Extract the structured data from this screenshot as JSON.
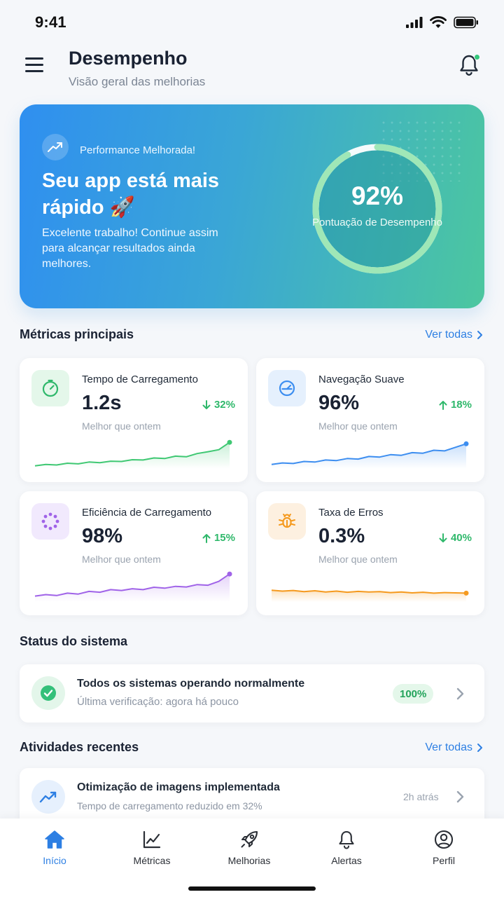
{
  "status_bar": {
    "time": "9:41"
  },
  "header": {
    "title": "Desempenho",
    "subtitle": "Visão geral das melhorias"
  },
  "hero": {
    "badge": "Performance Melhorada!",
    "title": "Seu app está mais rápido 🚀",
    "description": "Excelente trabalho! Continue assim para alcançar resultados ainda melhores.",
    "score": "92%",
    "score_fraction": 0.92,
    "score_label": "Pontuação de Desempenho"
  },
  "metrics_section": {
    "title": "Métricas principais",
    "see_all": "Ver todas"
  },
  "metrics": [
    {
      "title": "Tempo de Carregamento",
      "value": "1.2s",
      "change": "32%",
      "direction": "down",
      "sub": "Melhor que ontem",
      "color": "#3fc873",
      "icon": "speedometer-icon",
      "trend": [
        2,
        3,
        2.6,
        3.8,
        3.4,
        4.6,
        4.2,
        5.2,
        5,
        6.2,
        6,
        7.4,
        7,
        8.6,
        8.2,
        10.4,
        11.6,
        13,
        18
      ]
    },
    {
      "title": "Navegação Suave",
      "value": "96%",
      "change": "18%",
      "direction": "up",
      "sub": "Melhor que ontem",
      "color": "#3d8ef0",
      "icon": "gauge-icon",
      "trend": [
        3,
        4,
        3.6,
        5,
        4.6,
        6,
        5.6,
        7,
        6.6,
        8.4,
        8,
        9.6,
        9.2,
        11,
        10.6,
        12.6,
        12.2,
        14.6,
        17
      ]
    },
    {
      "title": "Eficiência de Carregamento",
      "value": "98%",
      "change": "15%",
      "direction": "up",
      "sub": "Melhor que ontem",
      "color": "#a063e8",
      "icon": "loader-dots-icon",
      "trend": [
        4,
        5,
        4.4,
        6,
        5.4,
        7.2,
        6.6,
        8.4,
        7.8,
        9,
        8.4,
        10,
        9.4,
        10.6,
        10.2,
        11.8,
        11.4,
        14,
        19
      ]
    },
    {
      "title": "Taxa de Erros",
      "value": "0.3%",
      "change": "40%",
      "direction": "down",
      "sub": "Melhor que ontem",
      "color": "#f59a1f",
      "icon": "bug-icon",
      "trend": [
        8,
        7.4,
        7.8,
        7,
        7.6,
        6.8,
        7.4,
        6.6,
        7.2,
        6.8,
        7,
        6.4,
        6.8,
        6.2,
        6.6,
        6,
        6.4,
        6.2,
        6
      ]
    }
  ],
  "system_section": {
    "title": "Status do sistema"
  },
  "system_status": {
    "text": "Todos os sistemas operando normalmente",
    "last_check": "Última verificação: agora há pouco",
    "badge": "100%"
  },
  "activity_section": {
    "title": "Atividades recentes",
    "see_all": "Ver todas"
  },
  "activity": {
    "title": "Otimização de imagens implementada",
    "subtitle": "Tempo de carregamento reduzido em 32%",
    "time": "2h atrás"
  },
  "tabs": [
    {
      "label": "Início",
      "icon": "home-icon",
      "active": true
    },
    {
      "label": "Métricas",
      "icon": "chart-icon",
      "active": false
    },
    {
      "label": "Melhorias",
      "icon": "rocket-icon",
      "active": false
    },
    {
      "label": "Alertas",
      "icon": "bell-icon",
      "active": false
    },
    {
      "label": "Perfil",
      "icon": "profile-icon",
      "active": false
    }
  ],
  "colors": {
    "accent": "#2d7fe3",
    "success": "#2fb86b"
  }
}
